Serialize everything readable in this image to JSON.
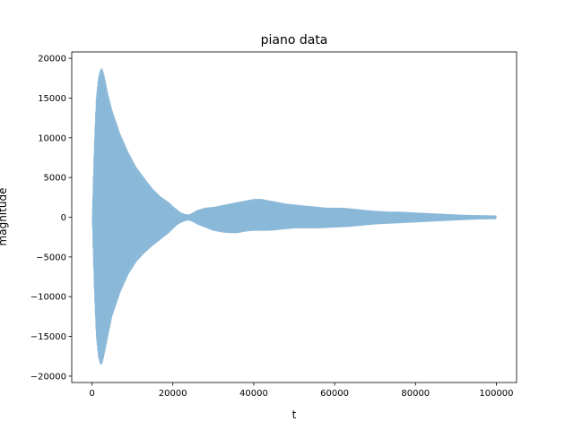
{
  "chart_data": {
    "type": "area",
    "title": "piano data",
    "xlabel": "t",
    "ylabel": "magnitude",
    "xlim": [
      -5000,
      105000
    ],
    "ylim": [
      -20800,
      20800
    ],
    "xticks": [
      0,
      20000,
      40000,
      60000,
      80000,
      100000
    ],
    "yticks": [
      -20000,
      -15000,
      -10000,
      -5000,
      0,
      5000,
      10000,
      15000,
      20000
    ],
    "grid": false,
    "series": [
      {
        "color": "#1f77b4",
        "opacity": 0.35,
        "envelope": {
          "t": [
            0,
            500,
            1000,
            1500,
            2000,
            2500,
            3000,
            4000,
            5000,
            7000,
            9000,
            11000,
            13000,
            15000,
            17000,
            19000,
            20000,
            21000,
            22000,
            23000,
            24000,
            25000,
            26000,
            28000,
            30000,
            32000,
            34000,
            36000,
            38000,
            40000,
            42000,
            44000,
            46000,
            48000,
            50000,
            52000,
            54000,
            56000,
            58000,
            60000,
            62000,
            64000,
            66000,
            68000,
            70000,
            72000,
            74000,
            76000,
            78000,
            80000,
            82000,
            84000,
            86000,
            88000,
            90000,
            92000,
            94000,
            96000,
            98000,
            100000
          ],
          "upper": [
            0,
            9000,
            15000,
            17500,
            18500,
            18800,
            18000,
            15500,
            13500,
            10500,
            8200,
            6300,
            4900,
            3600,
            2600,
            1900,
            1400,
            1000,
            600,
            400,
            350,
            600,
            900,
            1200,
            1300,
            1500,
            1700,
            1900,
            2100,
            2300,
            2300,
            2100,
            1900,
            1700,
            1600,
            1500,
            1400,
            1300,
            1200,
            1200,
            1200,
            1100,
            1000,
            900,
            800,
            750,
            700,
            700,
            650,
            600,
            550,
            500,
            450,
            400,
            350,
            300,
            280,
            260,
            240,
            220
          ],
          "lower": [
            0,
            -9000,
            -15000,
            -17500,
            -18500,
            -18500,
            -17500,
            -15000,
            -12500,
            -9500,
            -7200,
            -5600,
            -4500,
            -3600,
            -2800,
            -2000,
            -1500,
            -1000,
            -700,
            -500,
            -400,
            -600,
            -900,
            -1300,
            -1700,
            -1900,
            -2000,
            -2000,
            -1800,
            -1700,
            -1700,
            -1700,
            -1600,
            -1500,
            -1400,
            -1400,
            -1400,
            -1400,
            -1350,
            -1300,
            -1250,
            -1200,
            -1100,
            -1000,
            -900,
            -850,
            -800,
            -750,
            -700,
            -650,
            -600,
            -550,
            -500,
            -450,
            -400,
            -350,
            -300,
            -280,
            -260,
            -240
          ]
        }
      }
    ]
  }
}
